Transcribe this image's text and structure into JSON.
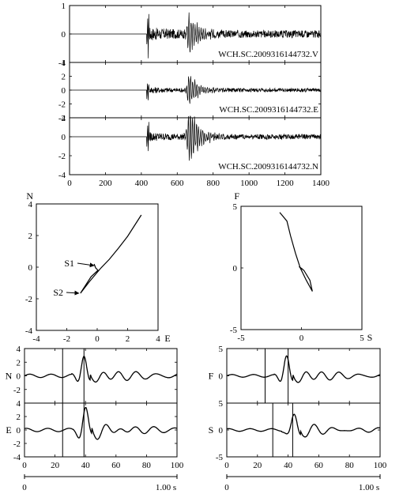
{
  "chart_data": [
    {
      "type": "line",
      "panel": "seismogram-stack",
      "x_ticks": [
        "0",
        "200",
        "400",
        "600",
        "800",
        "1000",
        "1200",
        "1400"
      ],
      "xlim": [
        0,
        1400
      ],
      "subplots": [
        {
          "label": "WCH.SC.2009316144732.V",
          "ylim": [
            -1,
            1
          ],
          "y_ticks": [
            "1",
            "0",
            "-1"
          ],
          "arrival": 430,
          "quiet_amp": 0.22,
          "spike": {
            "x": 662,
            "amp": 0.85
          }
        },
        {
          "label": "WCH.SC.2009316144732.E",
          "ylim": [
            -4,
            4
          ],
          "y_ticks": [
            "4",
            "2",
            "0",
            "-2",
            "-4"
          ],
          "arrival": 430,
          "quiet_amp": 0.45,
          "spike": {
            "x": 662,
            "amp": 3.0
          }
        },
        {
          "label": "WCH.SC.2009316144732.N",
          "ylim": [
            -4,
            2
          ],
          "y_ticks": [
            "2",
            "0",
            "-2",
            "-4"
          ],
          "arrival": 430,
          "quiet_amp": 0.45,
          "spike": {
            "x": 662,
            "amp": 3.8
          }
        }
      ]
    },
    {
      "type": "line",
      "panel": "particle-motion-NE",
      "xlabel": "E",
      "ylabel": "N",
      "xlim": [
        -4,
        4
      ],
      "ylim": [
        -4,
        4
      ],
      "x_ticks": [
        "-4",
        "-2",
        "0",
        "2",
        "4"
      ],
      "y_ticks": [
        "4",
        "2",
        "0",
        "-2",
        "-4"
      ],
      "annotations": [
        {
          "text": "S1",
          "target": [
            -0.1,
            0.1
          ]
        },
        {
          "text": "S2",
          "target": [
            -1.1,
            -1.65
          ]
        }
      ],
      "path": [
        [
          -0.2,
          0.2
        ],
        [
          -0.1,
          -0.05
        ],
        [
          0.05,
          -0.2
        ],
        [
          -0.4,
          -0.6
        ],
        [
          -1.1,
          -1.65
        ],
        [
          -0.5,
          -0.9
        ],
        [
          0.2,
          -0.1
        ],
        [
          0.8,
          0.5
        ],
        [
          1.4,
          1.2
        ],
        [
          2.0,
          1.95
        ],
        [
          2.9,
          3.3
        ]
      ]
    },
    {
      "type": "line",
      "panel": "particle-motion-FS",
      "xlabel": "S",
      "ylabel": "F",
      "xlim": [
        -5,
        5
      ],
      "ylim": [
        -5,
        5
      ],
      "x_ticks": [
        "-5",
        "0",
        "5"
      ],
      "y_ticks": [
        "5",
        "0",
        "-5"
      ],
      "path": [
        [
          -1.8,
          4.5
        ],
        [
          -1.2,
          3.8
        ],
        [
          -0.9,
          2.6
        ],
        [
          -0.5,
          1.2
        ],
        [
          -0.1,
          0.0
        ],
        [
          0.4,
          -1.0
        ],
        [
          0.9,
          -1.9
        ],
        [
          0.7,
          -1.0
        ],
        [
          0.2,
          -0.2
        ],
        [
          -0.2,
          0.1
        ],
        [
          0.1,
          -0.1
        ]
      ]
    },
    {
      "type": "line",
      "panel": "windowed-NE",
      "xlim": [
        0,
        100
      ],
      "x_ticks": [
        "0",
        "20",
        "40",
        "60",
        "80",
        "100"
      ],
      "time_scale": {
        "start": "0",
        "end": "1.00 s"
      },
      "markers": [
        25,
        39
      ],
      "subplots": [
        {
          "label": "N",
          "ylim": [
            -4,
            4
          ],
          "y_ticks": [
            "4",
            "2",
            "0",
            "-2"
          ],
          "peak": {
            "x": 39,
            "amp": 3.2
          }
        },
        {
          "label": "E",
          "ylim": [
            -4,
            4
          ],
          "y_ticks": [
            "4",
            "2",
            "0",
            "-2",
            "-4"
          ],
          "peak": {
            "x": 40,
            "amp": 3.3
          }
        }
      ]
    },
    {
      "type": "line",
      "panel": "windowed-FS",
      "xlim": [
        0,
        100
      ],
      "x_ticks": [
        "0",
        "20",
        "40",
        "60",
        "80",
        "100"
      ],
      "time_scale": {
        "start": "0",
        "end": "1.00 s"
      },
      "subplots": [
        {
          "label": "F",
          "ylim": [
            -5,
            5
          ],
          "y_ticks": [
            "5",
            "0"
          ],
          "markers": [
            25,
            40
          ],
          "peak": {
            "x": 39,
            "amp": 4.0
          }
        },
        {
          "label": "S",
          "ylim": [
            -5,
            5
          ],
          "y_ticks": [
            "5",
            "0",
            "-5"
          ],
          "markers": [
            30,
            43
          ],
          "peak": {
            "x": 44,
            "amp": 2.6
          }
        }
      ]
    }
  ]
}
